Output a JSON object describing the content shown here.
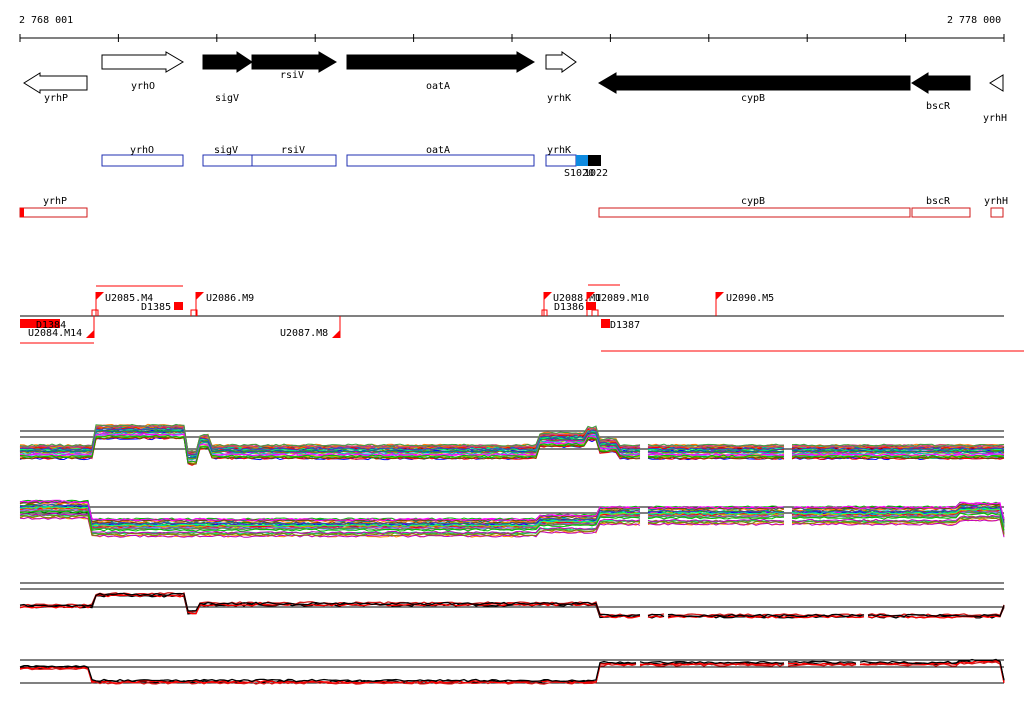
{
  "axis": {
    "start_label": "2 768 001",
    "end_label": "2 778 000"
  },
  "genes": [
    {
      "name": "yrhP",
      "strand": "-",
      "filled": false
    },
    {
      "name": "yrhO",
      "strand": "+",
      "filled": false
    },
    {
      "name": "sigV",
      "strand": "+",
      "filled": true
    },
    {
      "name": "rsiV",
      "strand": "+",
      "filled": true
    },
    {
      "name": "oatA",
      "strand": "+",
      "filled": true
    },
    {
      "name": "yrhK",
      "strand": "+",
      "filled": false
    },
    {
      "name": "cypB",
      "strand": "-",
      "filled": true
    },
    {
      "name": "bscR",
      "strand": "-",
      "filled": true
    },
    {
      "name": "yrhH",
      "strand": "-",
      "filled": false
    }
  ],
  "plus_transcripts": [
    {
      "name": "yrhO"
    },
    {
      "name": "sigV"
    },
    {
      "name": "rsiV"
    },
    {
      "name": "oatA"
    },
    {
      "name": "yrhK"
    }
  ],
  "plus_small_label": "S1020",
  "plus_small_label2": "1022",
  "minus_transcripts": [
    {
      "name": "yrhP"
    },
    {
      "name": "cypB"
    },
    {
      "name": "bscR"
    },
    {
      "name": "yrhH"
    }
  ],
  "upshifts": [
    {
      "label": "U2085.M4"
    },
    {
      "label": "U2086.M9"
    },
    {
      "label": "U2088.M1"
    },
    {
      "label": "U2089.M10"
    },
    {
      "label": "U2090.M5"
    },
    {
      "label": "U2084.M14"
    },
    {
      "label": "U2087.M8"
    }
  ],
  "downshifts": [
    {
      "label": "D1385"
    },
    {
      "label": "D1386"
    },
    {
      "label": "D1387"
    },
    {
      "label": "D1384"
    }
  ],
  "colors": {
    "gene_fill": "#000000",
    "plus_box": "#1f2fb0",
    "minus_box": "#d21a1a",
    "marker": "#ff0000",
    "highlight_blue": "#0f8be0"
  }
}
